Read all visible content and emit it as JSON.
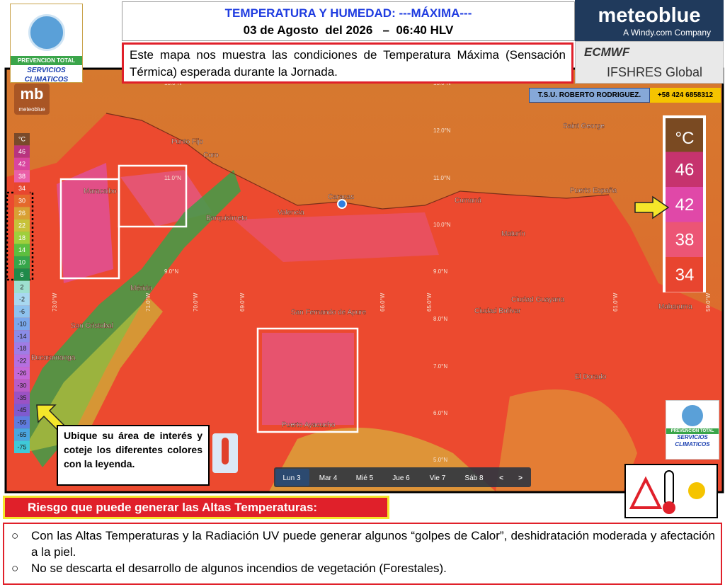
{
  "header": {
    "title": "TEMPERATURA Y HUMEDAD:  ---MÁXIMA---",
    "date": "03 de Agosto  del 2026   –  06:40 HLV",
    "description": "Este mapa nos muestra las condiciones de Temperatura Máxima (Sensación Térmica) esperada durante la Jornada."
  },
  "logo": {
    "name": "PREVENCION TOTAL",
    "subtitle": "SERVICIOS CLIMATICOS"
  },
  "brand": {
    "name": "meteoblue",
    "tagline": "A Windy.com Company",
    "map_logo": "mb",
    "map_logo_name": "meteoblue"
  },
  "models": [
    "ECMWF",
    "IFSHRES Global"
  ],
  "author": {
    "name": "T.S.U. ROBERTO RODRIGUEZ.",
    "phone": "+58 424 6858312"
  },
  "map": {
    "cities": [
      "Punto Fijo",
      "Coro",
      "Maracaibo",
      "Barquisimeto",
      "Valencia",
      "Caracas",
      "Cumaná",
      "Puerto España",
      "Saint George",
      "Maturín",
      "Mérida",
      "San Cristobal",
      "Bucaramanga",
      "San Fernando de Apure",
      "Ciudad Guayana",
      "Ciudad Bolívar",
      "Puerto Ayacucho",
      "El Dorado",
      "Mabaruma"
    ],
    "latitudes": [
      "13.0°N",
      "12.0°N",
      "11.0°N",
      "10.0°N",
      "9.0°N",
      "8.0°N",
      "7.0°N",
      "6.0°N",
      "5.0°N"
    ],
    "longitudes": [
      "73.0°W",
      "71.0°W",
      "70.0°W",
      "69.0°W",
      "66.0°W",
      "65.0°W",
      "61.0°W",
      "59.0°W"
    ]
  },
  "legend_scale": {
    "unit": "°C",
    "values": [
      46,
      42,
      38,
      34,
      30,
      26,
      22,
      18,
      14,
      10,
      6,
      2,
      -2,
      -6,
      -10,
      -14,
      -18,
      -22,
      -26,
      -30,
      -35,
      -45,
      -55,
      -65,
      -75
    ],
    "colors": [
      "#b8337f",
      "#d9459f",
      "#ea5fa8",
      "#e8472f",
      "#e4692c",
      "#d9a034",
      "#c7c23a",
      "#9fcf3c",
      "#5cbf3f",
      "#35a64a",
      "#1f8a4a",
      "#9ee0d0",
      "#a8d8f0",
      "#8ec3ef",
      "#7aa8ec",
      "#8a8ce8",
      "#a07ce6",
      "#b56fe0",
      "#c468d8",
      "#b85cc8",
      "#9b52c4",
      "#7f5ad0",
      "#5f7ce0",
      "#4aa6e0",
      "#3fc9d8"
    ]
  },
  "legend_highlight": {
    "unit": "°C",
    "values": [
      46,
      42,
      38,
      34
    ],
    "colors": [
      "#c6336e",
      "#e048a8",
      "#ec5575",
      "#e8452f"
    ]
  },
  "days": [
    "Lun 3",
    "Mar 4",
    "Mié 5",
    "Jue 6",
    "Vie 7",
    "Sáb 8"
  ],
  "nav": [
    "<",
    ">"
  ],
  "note": "Ubique su área de interés y coteje los diferentes colores con la leyenda.",
  "risk": {
    "title": "Riesgo que puede generar las Altas Temperaturas:",
    "items": [
      "Con las Altas Temperaturas y la Radiación UV puede generar algunos “golpes de Calor”, deshidratación moderada y afectación a la piel.",
      "No se descarta el desarrollo de algunos incendios de vegetación (Forestales)."
    ]
  }
}
